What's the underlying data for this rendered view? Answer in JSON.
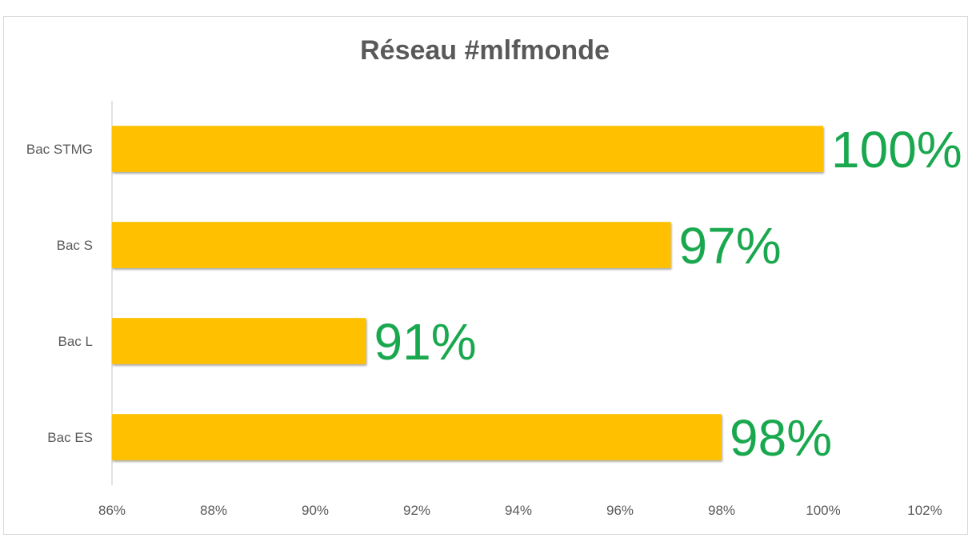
{
  "chart_data": {
    "type": "bar",
    "orientation": "horizontal",
    "title": "Réseau #mlfmonde",
    "categories": [
      "Bac STMG",
      "Bac S",
      "Bac L",
      "Bac ES"
    ],
    "values": [
      100,
      97,
      91,
      98
    ],
    "data_labels": [
      "100%",
      "97%",
      "91%",
      "98%"
    ],
    "xlim": [
      86,
      102
    ],
    "x_ticks": [
      86,
      88,
      90,
      92,
      94,
      96,
      98,
      100,
      102
    ],
    "x_tick_labels": [
      "86%",
      "88%",
      "90%",
      "92%",
      "94%",
      "96%",
      "98%",
      "100%",
      "102%"
    ],
    "xlabel": "",
    "ylabel": "",
    "grid": false,
    "legend": "none",
    "colors": {
      "bar": "#ffc000",
      "data_label": "#1aa84f",
      "text": "#595959",
      "axis": "#d9d9d9"
    }
  }
}
